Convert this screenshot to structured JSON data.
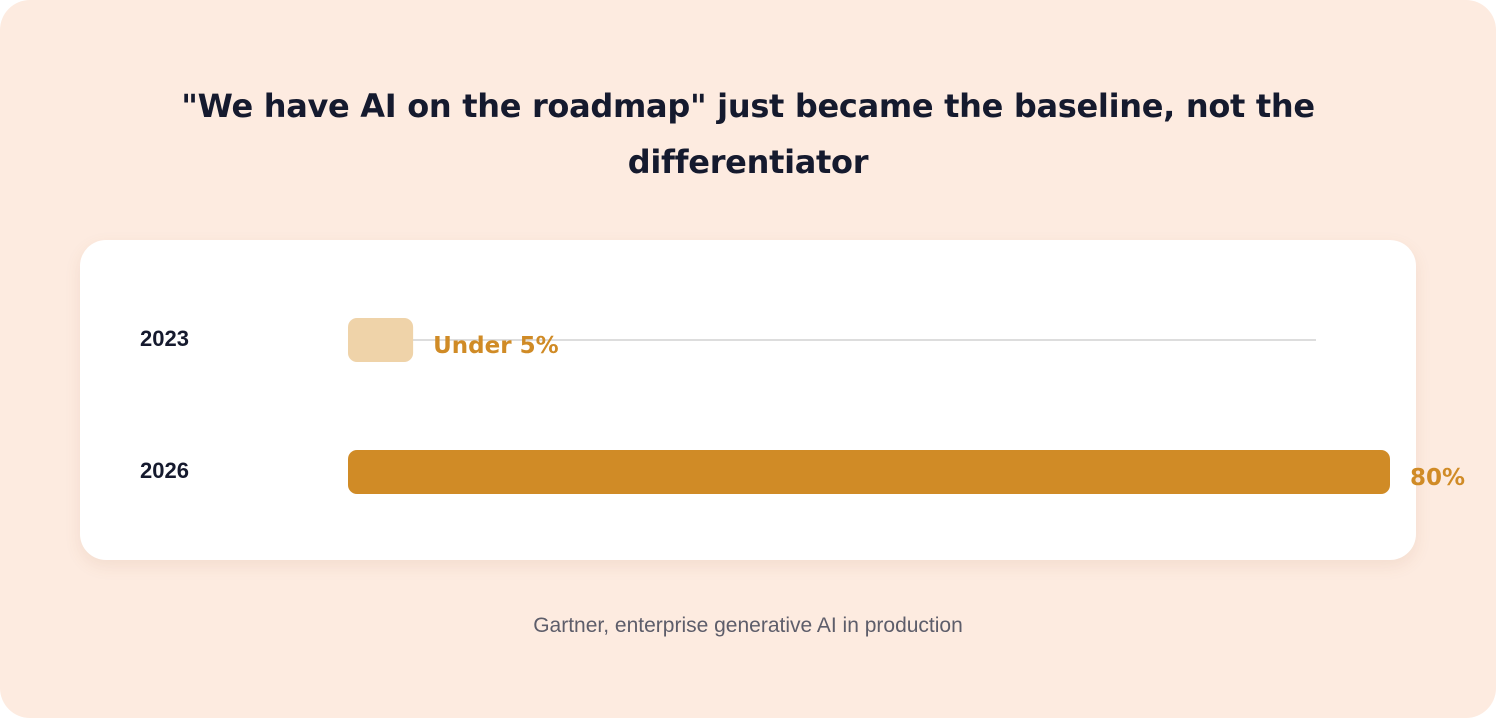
{
  "title": "\"We have AI on the roadmap\" just became the baseline, not the differentiator",
  "source": "Gartner, enterprise generative AI in production",
  "colors": {
    "background": "#fdebe0",
    "bar_2026": "#d08b26",
    "bar_2023": "#efd3a9",
    "value_label": "#d08b26",
    "track": "#dddddd",
    "text": "#151a2e"
  },
  "chart_data": {
    "type": "bar",
    "orientation": "horizontal",
    "title": "\"We have AI on the roadmap\" just became the baseline, not the differentiator",
    "categories": [
      "2023",
      "2026"
    ],
    "values": [
      5,
      80
    ],
    "value_labels": [
      "Under 5%",
      "80%"
    ],
    "unit": "%",
    "xlim": [
      0,
      100
    ],
    "grid": false,
    "legend": "none",
    "note": "Gartner, enterprise generative AI in production"
  }
}
